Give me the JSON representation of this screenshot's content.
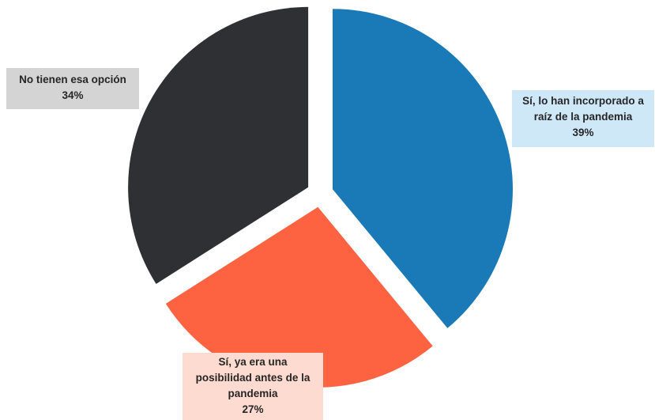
{
  "chart_data": {
    "type": "pie",
    "slices": [
      {
        "label_lines": [
          "Sí, lo han incorporado a",
          "raíz de la pandemia"
        ],
        "value": 39,
        "value_label": "39%",
        "color": "#1a7ab7",
        "label_bg": "#cfe8f8"
      },
      {
        "label_lines": [
          "Sí, ya era una",
          "posibilidad antes de la",
          "pandemia"
        ],
        "value": 27,
        "value_label": "27%",
        "color": "#fd6241",
        "label_bg": "#fddbd1"
      },
      {
        "label_lines": [
          "No tienen esa opción"
        ],
        "value": 34,
        "value_label": "34%",
        "color": "#2e3034",
        "label_bg": "#d4d4d4"
      }
    ],
    "start_angle_deg": 0,
    "direction": "clockwise",
    "exploded": true
  }
}
